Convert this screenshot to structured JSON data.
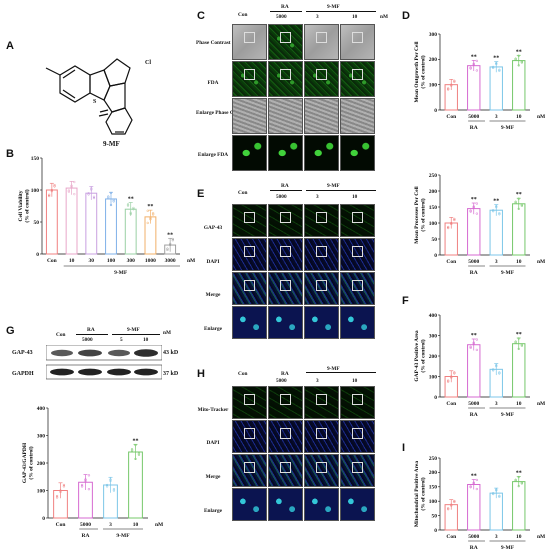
{
  "panels": {
    "A": "A",
    "B": "B",
    "C": "C",
    "D": "D",
    "E": "E",
    "F": "F",
    "G": "G",
    "H": "H",
    "I": "I"
  },
  "molecule": {
    "name": "9-MF",
    "cl": "Cl"
  },
  "common": {
    "con": "Con",
    "ra": "RA",
    "mf": "9-MF",
    "nM": "nM",
    "c5000": "5000",
    "c3": "3",
    "c10": "10",
    "c5": "5"
  },
  "C": {
    "rows": [
      "Phase Contrast",
      "FDA",
      "Enlarge Phase Contrast",
      "Enlarge FDA"
    ]
  },
  "E": {
    "rows": [
      "GAP-43",
      "DAPI",
      "Merge",
      "Enlarge"
    ]
  },
  "H": {
    "rows": [
      "Mito-Tracker",
      "DAPI",
      "Merge",
      "Enlarge"
    ]
  },
  "G": {
    "proteins": [
      "GAP-43",
      "GAPDH"
    ],
    "sizes": [
      "43 kD",
      "37 kD"
    ]
  },
  "colors": {
    "con": "#f08080",
    "c10": "#e8a6c8",
    "c30": "#c9a0e0",
    "c100": "#7fb0e8",
    "c300": "#9ad0a4",
    "c1000": "#f2b06a",
    "c3000": "#a0a0a0",
    "ra": "#d66ad1",
    "mf3": "#7cc6e8",
    "mf10": "#76c86a"
  },
  "chart_data": [
    {
      "panel": "B",
      "type": "bar",
      "ylabel": "Cell Viability (% of control)",
      "ylim": [
        0,
        150
      ],
      "yticks": [
        0,
        50,
        100,
        150
      ],
      "categories": [
        "Con",
        "10",
        "30",
        "100",
        "300",
        "1000",
        "3000"
      ],
      "values": [
        100,
        103,
        95,
        86,
        70,
        58,
        14
      ],
      "sig": [
        "",
        "",
        "",
        "",
        "**",
        "**",
        "**"
      ],
      "xgroup": "9-MF",
      "unit": "nM"
    },
    {
      "panel": "D-top",
      "type": "bar",
      "ylabel": "Mean Outgrowth Per Cell (% of control)",
      "ylim": [
        0,
        300
      ],
      "yticks": [
        0,
        100,
        200,
        300
      ],
      "categories": [
        "Con",
        "5000",
        "3",
        "10"
      ],
      "values": [
        100,
        175,
        170,
        195
      ],
      "sig": [
        "",
        "**",
        "**",
        "**"
      ],
      "groups": [
        "RA",
        "9-MF"
      ],
      "unit": "nM"
    },
    {
      "panel": "D-bottom",
      "type": "bar",
      "ylabel": "Mean Processes Per Cell (% of control)",
      "ylim": [
        0,
        250
      ],
      "yticks": [
        0,
        50,
        100,
        150,
        200,
        250
      ],
      "categories": [
        "Con",
        "5000",
        "3",
        "10"
      ],
      "values": [
        100,
        145,
        140,
        160
      ],
      "sig": [
        "",
        "**",
        "**",
        "**"
      ],
      "groups": [
        "RA",
        "9-MF"
      ],
      "unit": "nM"
    },
    {
      "panel": "F",
      "type": "bar",
      "ylabel": "GAP-43 Positive Area (% of control)",
      "ylim": [
        0,
        400
      ],
      "yticks": [
        0,
        100,
        200,
        300,
        400
      ],
      "categories": [
        "Con",
        "5000",
        "3",
        "10"
      ],
      "values": [
        100,
        255,
        135,
        260
      ],
      "sig": [
        "",
        "**",
        "",
        "**"
      ],
      "groups": [
        "RA",
        "9-MF"
      ],
      "unit": "nM"
    },
    {
      "panel": "G",
      "type": "bar",
      "ylabel": "GAP-43/GAPDH (% of control)",
      "ylim": [
        0,
        400
      ],
      "yticks": [
        0,
        100,
        200,
        300,
        400
      ],
      "categories": [
        "Con",
        "5000",
        "3",
        "10"
      ],
      "values": [
        100,
        130,
        120,
        240
      ],
      "sig": [
        "",
        "",
        "",
        "**"
      ],
      "groups": [
        "RA",
        "9-MF"
      ],
      "unit": "nM"
    },
    {
      "panel": "I",
      "type": "bar",
      "ylabel": "Mitochondrial Positive Area (% of control)",
      "ylim": [
        0,
        250
      ],
      "yticks": [
        0,
        50,
        100,
        150,
        200,
        250
      ],
      "categories": [
        "Con",
        "5000",
        "3",
        "10"
      ],
      "values": [
        88,
        158,
        128,
        168
      ],
      "sig": [
        "",
        "**",
        "",
        "**"
      ],
      "groups": [
        "RA",
        "9-MF"
      ],
      "unit": "nM"
    }
  ]
}
